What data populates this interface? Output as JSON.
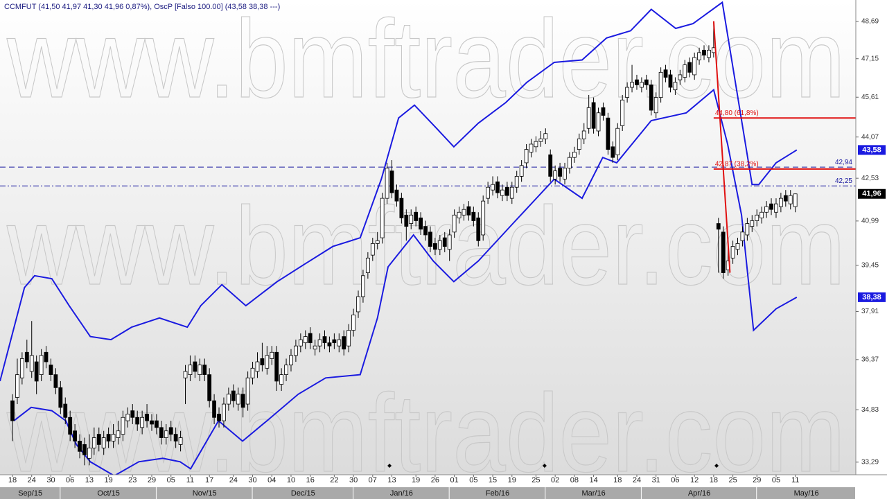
{
  "chart_data": {
    "type": "candlestick",
    "title": "CCMFUT (41,50  41,97  41,30  41,96  0,87%), OscP [Falso 100.00] (43,58 38,38 ---)",
    "watermark": "www.bmftrader.com",
    "log_scale": true,
    "xlim": [
      -2.6,
      175.6
    ],
    "ylim": [
      32.93,
      49.6
    ],
    "yticks": [
      {
        "value": 48.69,
        "label": "48,69"
      },
      {
        "value": 47.15,
        "label": "47,15"
      },
      {
        "value": 45.61,
        "label": "45,61"
      },
      {
        "value": 44.07,
        "label": "44,07"
      },
      {
        "value": 42.53,
        "label": "42,53"
      },
      {
        "value": 40.99,
        "label": "40,99"
      },
      {
        "value": 39.45,
        "label": "39,45"
      },
      {
        "value": 37.91,
        "label": "37,91"
      },
      {
        "value": 36.37,
        "label": "36,37"
      },
      {
        "value": 34.83,
        "label": "34,83"
      },
      {
        "value": 33.29,
        "label": "33,29"
      }
    ],
    "xticks": [
      {
        "value": 0,
        "label": "18"
      },
      {
        "value": 4,
        "label": "24"
      },
      {
        "value": 8,
        "label": "30"
      },
      {
        "value": 12,
        "label": "06"
      },
      {
        "value": 16,
        "label": "13"
      },
      {
        "value": 20,
        "label": "19"
      },
      {
        "value": 25,
        "label": "23"
      },
      {
        "value": 29,
        "label": "29"
      },
      {
        "value": 33,
        "label": "05"
      },
      {
        "value": 37,
        "label": "11"
      },
      {
        "value": 41,
        "label": "17"
      },
      {
        "value": 46,
        "label": "24"
      },
      {
        "value": 50,
        "label": "30"
      },
      {
        "value": 54,
        "label": "04"
      },
      {
        "value": 58,
        "label": "10"
      },
      {
        "value": 62,
        "label": "16"
      },
      {
        "value": 67,
        "label": "22"
      },
      {
        "value": 71,
        "label": "30"
      },
      {
        "value": 75,
        "label": "07"
      },
      {
        "value": 79,
        "label": "13"
      },
      {
        "value": 84,
        "label": "19"
      },
      {
        "value": 88,
        "label": "26"
      },
      {
        "value": 92,
        "label": "01"
      },
      {
        "value": 96,
        "label": "05"
      },
      {
        "value": 100,
        "label": "15"
      },
      {
        "value": 104,
        "label": "19"
      },
      {
        "value": 109,
        "label": "25"
      },
      {
        "value": 113,
        "label": "02"
      },
      {
        "value": 117,
        "label": "08"
      },
      {
        "value": 121,
        "label": "14"
      },
      {
        "value": 126,
        "label": "18"
      },
      {
        "value": 130,
        "label": "24"
      },
      {
        "value": 134,
        "label": "31"
      },
      {
        "value": 138,
        "label": "06"
      },
      {
        "value": 142,
        "label": "12"
      },
      {
        "value": 146,
        "label": "18"
      },
      {
        "value": 150,
        "label": "25"
      },
      {
        "value": 155,
        "label": "29"
      },
      {
        "value": 159,
        "label": "05"
      },
      {
        "value": 163,
        "label": "11"
      }
    ],
    "month_ticks": [
      {
        "value": -2.6,
        "label": "Sep/15"
      },
      {
        "value": 10,
        "label": "Oct/15"
      },
      {
        "value": 30,
        "label": "Nov/15"
      },
      {
        "value": 50,
        "label": "Dec/15"
      },
      {
        "value": 71,
        "label": "Jan/16"
      },
      {
        "value": 91,
        "label": "Feb/16"
      },
      {
        "value": 111,
        "label": "Mar/16"
      },
      {
        "value": 131,
        "label": "Apr/16"
      },
      {
        "value": 155,
        "label": "May/16"
      }
    ],
    "up_color": "#ffffff",
    "down_color": "#000000",
    "open": [
      35.1,
      35.2,
      35.8,
      36.6,
      36.0,
      36.3,
      35.9,
      36.6,
      36.2,
      35.9,
      35.5,
      35.0,
      34.6,
      34.2,
      33.9,
      33.8,
      33.4,
      33.7,
      34.1,
      33.7,
      34.1,
      33.9,
      34.0,
      34.1,
      34.5,
      34.8,
      34.6,
      34.3,
      34.7,
      34.5,
      34.5,
      34.3,
      34.0,
      34.3,
      34.1,
      33.8,
      35.8,
      35.9,
      36.3,
      35.9,
      36.2,
      35.9,
      35.1,
      34.7,
      34.5,
      35.0,
      35.4,
      35.0,
      35.3,
      35.0,
      35.8,
      36.0,
      36.4,
      36.1,
      36.4,
      36.6,
      35.6,
      35.9,
      36.2,
      36.5,
      36.8,
      36.9,
      37.2,
      36.7,
      36.8,
      37.1,
      36.9,
      37.0,
      36.8,
      37.1,
      36.8,
      37.3,
      37.9,
      38.4,
      39.2,
      39.8,
      40.2,
      40.4,
      41.8,
      42.8,
      42.1,
      41.8,
      41.2,
      40.9,
      41.3,
      41.1,
      40.8,
      40.6,
      40.2,
      40.0,
      40.4,
      40.0,
      40.6,
      41.1,
      41.2,
      41.5,
      41.3,
      41.1,
      40.5,
      41.8,
      42.1,
      42.4,
      41.9,
      42.2,
      41.8,
      42.2,
      42.6,
      43.1,
      43.5,
      43.7,
      43.9,
      44.0,
      43.4,
      42.5,
      42.9,
      42.5,
      42.9,
      43.3,
      43.6,
      44.0,
      44.4,
      45.4,
      44.3,
      45.2,
      44.8,
      43.7,
      43.4,
      44.5,
      45.6,
      46.0,
      46.3,
      46.0,
      46.3,
      46.1,
      45.0,
      45.6,
      46.7,
      46.5,
      45.9,
      46.3,
      46.4,
      47.0,
      46.5,
      47.1,
      47.5,
      47.2,
      47.4,
      40.9,
      40.6,
      39.3,
      39.7,
      40.0,
      40.3,
      40.5,
      40.8,
      41.0,
      41.1,
      41.3,
      41.6,
      41.3,
      41.5,
      41.9,
      41.6,
      41.5
    ],
    "high": [
      35.3,
      36.4,
      36.6,
      37.0,
      37.6,
      36.5,
      36.7,
      36.8,
      36.4,
      36.1,
      35.7,
      35.2,
      34.8,
      34.4,
      34.1,
      34.0,
      34.1,
      34.3,
      34.3,
      34.2,
      34.3,
      34.4,
      34.5,
      34.8,
      34.9,
      35.0,
      34.8,
      34.8,
      35.0,
      34.7,
      34.7,
      34.5,
      34.4,
      34.5,
      34.3,
      34.2,
      36.2,
      36.5,
      36.5,
      36.4,
      36.4,
      36.1,
      35.3,
      34.9,
      35.2,
      35.5,
      35.6,
      35.5,
      35.5,
      36.0,
      36.3,
      36.6,
      36.9,
      36.8,
      36.8,
      36.8,
      36.1,
      36.4,
      36.7,
      37.0,
      37.2,
      37.3,
      37.4,
      37.0,
      37.2,
      37.3,
      37.1,
      37.2,
      37.2,
      37.3,
      37.5,
      38.0,
      38.6,
      39.3,
      39.9,
      40.4,
      40.6,
      42.0,
      43.1,
      43.2,
      42.3,
      42.0,
      41.4,
      41.4,
      41.5,
      41.3,
      41.0,
      40.8,
      40.4,
      40.5,
      40.6,
      40.7,
      41.4,
      41.5,
      41.6,
      41.7,
      41.5,
      41.3,
      41.9,
      42.4,
      42.6,
      42.6,
      42.3,
      42.4,
      42.4,
      42.8,
      43.2,
      43.8,
      44.0,
      44.1,
      44.3,
      44.4,
      43.6,
      43.0,
      43.1,
      43.1,
      43.5,
      43.7,
      44.2,
      44.6,
      45.7,
      45.6,
      45.2,
      45.4,
      45.0,
      43.9,
      44.6,
      45.7,
      46.2,
      46.9,
      46.5,
      46.4,
      46.5,
      46.3,
      45.8,
      46.8,
      46.9,
      46.7,
      46.4,
      46.7,
      47.1,
      47.2,
      47.4,
      47.6,
      47.7,
      47.7,
      48.7,
      41.1,
      40.8,
      40.4,
      40.3,
      40.4,
      40.8,
      41.1,
      41.2,
      41.4,
      41.5,
      41.7,
      41.8,
      41.8,
      42.0,
      42.1,
      42.1,
      41.97
    ],
    "low": [
      33.9,
      35.0,
      35.6,
      36.1,
      35.8,
      35.3,
      35.7,
      36.1,
      35.7,
      35.3,
      34.7,
      34.4,
      33.9,
      33.7,
      33.4,
      33.2,
      33.2,
      33.5,
      33.6,
      33.5,
      33.7,
      33.7,
      33.8,
      33.9,
      34.3,
      34.4,
      34.2,
      34.1,
      34.3,
      34.2,
      34.1,
      33.8,
      33.8,
      33.9,
      33.7,
      33.6,
      35.0,
      35.7,
      35.8,
      35.7,
      35.7,
      34.9,
      34.4,
      34.3,
      34.3,
      34.8,
      34.9,
      34.8,
      34.6,
      34.8,
      35.6,
      35.8,
      36.0,
      35.9,
      36.2,
      35.4,
      35.4,
      35.7,
      36.0,
      36.3,
      36.6,
      36.7,
      36.7,
      36.5,
      36.6,
      36.7,
      36.6,
      36.7,
      36.6,
      36.5,
      36.6,
      37.1,
      37.7,
      38.2,
      39.0,
      39.6,
      40.0,
      40.2,
      41.6,
      41.8,
      41.5,
      40.9,
      40.3,
      40.7,
      40.8,
      40.5,
      40.3,
      39.9,
      39.8,
      39.8,
      39.9,
      39.6,
      40.4,
      40.9,
      41.0,
      41.0,
      40.8,
      40.1,
      40.3,
      41.6,
      41.9,
      41.8,
      41.7,
      41.7,
      41.6,
      42.0,
      42.4,
      42.9,
      43.3,
      43.5,
      43.7,
      43.8,
      42.4,
      42.3,
      42.4,
      42.3,
      42.7,
      43.1,
      43.4,
      43.8,
      44.2,
      44.2,
      44.1,
      44.7,
      43.4,
      43.1,
      43.2,
      44.3,
      45.4,
      45.8,
      45.9,
      45.8,
      45.9,
      44.9,
      44.8,
      45.4,
      46.2,
      45.8,
      45.7,
      46.1,
      46.2,
      46.4,
      46.3,
      46.9,
      47.1,
      47.0,
      47.2,
      39.2,
      39.0,
      39.1,
      39.5,
      39.8,
      40.1,
      40.3,
      40.6,
      40.8,
      40.9,
      41.1,
      41.2,
      41.1,
      41.3,
      41.5,
      41.4,
      41.3
    ],
    "close": [
      34.5,
      35.9,
      36.4,
      36.3,
      36.5,
      35.7,
      36.5,
      36.3,
      35.9,
      35.5,
      34.9,
      34.6,
      34.1,
      33.9,
      33.6,
      33.5,
      33.7,
      34.0,
      33.8,
      34.0,
      33.9,
      34.1,
      34.2,
      34.6,
      34.7,
      34.6,
      34.4,
      34.6,
      34.5,
      34.4,
      34.3,
      34.0,
      34.2,
      34.1,
      33.9,
      34.0,
      36.0,
      36.2,
      36.0,
      36.2,
      35.9,
      35.1,
      34.6,
      34.5,
      35.0,
      35.3,
      35.1,
      35.3,
      34.9,
      35.8,
      36.1,
      36.3,
      36.2,
      36.5,
      36.6,
      35.7,
      35.9,
      36.2,
      36.5,
      36.8,
      37.0,
      37.1,
      36.9,
      36.8,
      37.0,
      36.9,
      36.8,
      36.9,
      37.0,
      36.7,
      37.3,
      37.8,
      38.4,
      39.1,
      39.7,
      40.2,
      40.3,
      41.8,
      42.9,
      42.0,
      41.7,
      41.1,
      40.8,
      41.2,
      41.0,
      40.7,
      40.5,
      40.1,
      40.0,
      40.3,
      40.1,
      40.5,
      41.2,
      41.3,
      41.4,
      41.2,
      41.0,
      40.3,
      41.7,
      42.2,
      42.3,
      42.0,
      42.1,
      41.9,
      42.2,
      42.6,
      43.0,
      43.6,
      43.8,
      43.9,
      44.0,
      44.2,
      42.6,
      42.8,
      42.6,
      42.9,
      43.3,
      43.5,
      44.0,
      44.3,
      45.2,
      44.4,
      45.0,
      44.9,
      43.6,
      43.3,
      44.4,
      45.5,
      46.0,
      46.2,
      46.1,
      46.2,
      46.1,
      45.1,
      45.6,
      46.6,
      46.4,
      46.0,
      46.2,
      46.5,
      46.9,
      46.6,
      47.2,
      47.4,
      47.3,
      47.5,
      47.6,
      40.7,
      39.2,
      39.6,
      40.1,
      40.2,
      40.6,
      40.9,
      41.0,
      41.2,
      41.3,
      41.5,
      41.4,
      41.6,
      41.8,
      41.7,
      41.9,
      41.96
    ],
    "bands": [
      {
        "color": "#1a1ae0",
        "x": [
          -2.6,
          2.5,
          4.6,
          8.2,
          11.8,
          16.2,
          20.5,
          24.8,
          30.6,
          36.4,
          39.2,
          43.6,
          48.6,
          55.1,
          60.9,
          66.7,
          72.4,
          76.8,
          80.4,
          83.7,
          88.3,
          91.9,
          97.0,
          102.7,
          107.1,
          112.8,
          118.6,
          123.7,
          128.7,
          133.0,
          138.1,
          141.7,
          147.8,
          154.0,
          155.4,
          159.0,
          163.3
        ],
        "values": [
          35.7,
          38.7,
          39.1,
          39.0,
          38.1,
          37.1,
          37.0,
          37.4,
          37.7,
          37.4,
          38.1,
          38.8,
          38.1,
          38.9,
          39.5,
          40.1,
          40.4,
          42.5,
          44.8,
          45.3,
          44.4,
          43.7,
          44.6,
          45.4,
          46.2,
          47.0,
          47.1,
          48.0,
          48.3,
          49.2,
          48.4,
          48.6,
          49.5,
          42.3,
          42.3,
          43.1,
          43.58
        ]
      },
      {
        "color": "#1a1ae0",
        "x": [
          0.3,
          3.9,
          8.2,
          11.1,
          13.3,
          16.2,
          21.2,
          26.3,
          31.3,
          34.9,
          37.1,
          42.9,
          47.9,
          53.0,
          59.5,
          65.2,
          72.4,
          76.0,
          78.2,
          83.5,
          87.6,
          91.9,
          97.0,
          104.2,
          112.8,
          118.6,
          122.9,
          125.8,
          133.0,
          140.3,
          146.0,
          148.9,
          151.8,
          154.3,
          159.0,
          163.3
        ],
        "values": [
          34.5,
          34.9,
          34.8,
          34.5,
          33.8,
          33.3,
          32.9,
          33.3,
          33.4,
          33.3,
          33.1,
          34.5,
          33.9,
          34.5,
          35.3,
          35.8,
          35.9,
          37.7,
          39.4,
          40.5,
          39.6,
          38.9,
          39.6,
          40.9,
          42.5,
          41.8,
          43.3,
          43.1,
          44.7,
          45.0,
          45.9,
          43.8,
          41.2,
          37.3,
          38.0,
          38.38
        ]
      }
    ],
    "trend_line": {
      "color": "#e01010",
      "x": [
        146,
        149.4
      ],
      "values": [
        48.7,
        39.2
      ]
    },
    "levels": [
      {
        "value": 44.8,
        "label": "44,80 (61,8%)",
        "color": "#e01010",
        "style": "solid",
        "from": 146
      },
      {
        "value": 42.87,
        "label": "42,87 (38,2%)",
        "color": "#e01010",
        "style": "solid",
        "from": 146
      },
      {
        "value": 42.94,
        "label": "42,94",
        "color": "#1a1aa0",
        "style": "dashed",
        "from": -2.6
      },
      {
        "value": 42.25,
        "label": "42,25",
        "color": "#1a1aa0",
        "style": "dashdot",
        "from": -2.6
      }
    ],
    "price_tags": [
      {
        "value": 43.58,
        "label": "43,58",
        "color": "#1a1ae0"
      },
      {
        "value": 41.96,
        "label": "41,96",
        "color": "#000000"
      },
      {
        "value": 38.38,
        "label": "38,38",
        "color": "#1a1ae0"
      }
    ],
    "event_markers": [
      78.5,
      110.8,
      146.6
    ]
  }
}
